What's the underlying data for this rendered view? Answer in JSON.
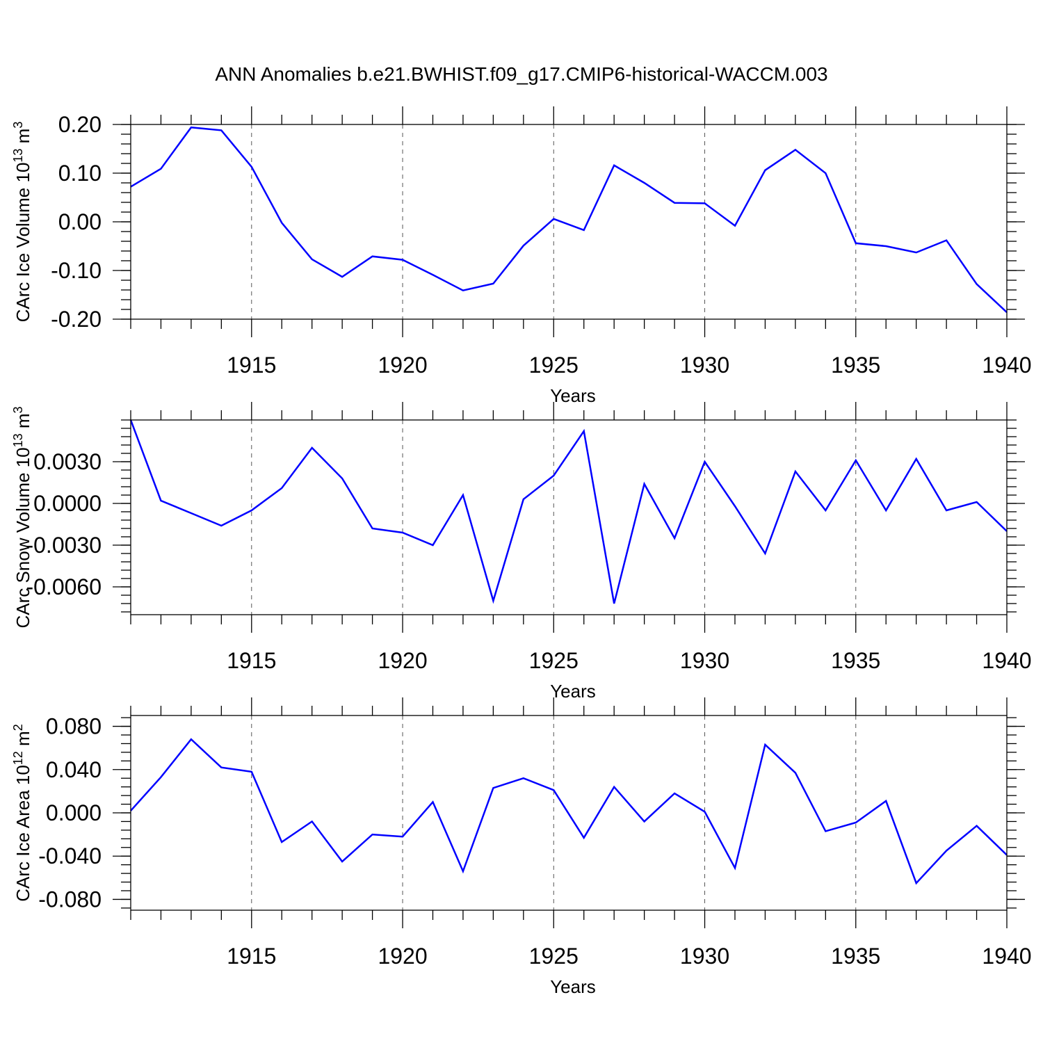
{
  "title": "ANN Anomalies b.e21.BWHIST.f09_g17.CMIP6-historical-WACCM.003",
  "line_color": "#0000ff",
  "chart_data": [
    {
      "type": "line",
      "ylabel_main": "CArc Ice Volume 10",
      "ylabel_exp": "13",
      "ylabel_unit": " m",
      "ylabel_unit_exp": "3",
      "xlabel": "Years",
      "xlim": [
        1911,
        1940
      ],
      "ylim": [
        -0.2,
        0.2
      ],
      "xticks": [
        1915,
        1920,
        1925,
        1930,
        1935,
        1940
      ],
      "yticks": [
        -0.2,
        -0.1,
        0.0,
        0.1,
        0.2
      ],
      "ytick_labels": [
        "-0.20",
        "-0.10",
        "0.00",
        "0.10",
        "0.20"
      ],
      "grid_x": true,
      "x": [
        1911,
        1912,
        1913,
        1914,
        1915,
        1916,
        1917,
        1918,
        1919,
        1920,
        1921,
        1922,
        1923,
        1924,
        1925,
        1926,
        1927,
        1928,
        1929,
        1930,
        1931,
        1932,
        1933,
        1934,
        1935,
        1936,
        1937,
        1938,
        1939,
        1940
      ],
      "values": [
        0.072,
        0.109,
        0.194,
        0.188,
        0.113,
        -0.002,
        -0.077,
        -0.113,
        -0.071,
        -0.078,
        -0.109,
        -0.141,
        -0.127,
        -0.049,
        0.006,
        -0.017,
        0.116,
        0.08,
        0.039,
        0.038,
        -0.008,
        0.106,
        0.148,
        0.1,
        -0.044,
        -0.05,
        -0.063,
        -0.038,
        -0.128,
        -0.186
      ]
    },
    {
      "type": "line",
      "ylabel_main": "CArc Snow Volume 10",
      "ylabel_exp": "13",
      "ylabel_unit": " m",
      "ylabel_unit_exp": "3",
      "xlabel": "Years",
      "xlim": [
        1911,
        1940
      ],
      "ylim": [
        -0.008,
        0.006
      ],
      "xticks": [
        1915,
        1920,
        1925,
        1930,
        1935,
        1940
      ],
      "yticks": [
        -0.006,
        -0.003,
        0.0,
        0.003
      ],
      "ytick_labels": [
        "-0.0060",
        "-0.0030",
        "0.0000",
        "0.0030"
      ],
      "grid_x": true,
      "x": [
        1911,
        1912,
        1913,
        1914,
        1915,
        1916,
        1917,
        1918,
        1919,
        1920,
        1921,
        1922,
        1923,
        1924,
        1925,
        1926,
        1927,
        1928,
        1929,
        1930,
        1931,
        1932,
        1933,
        1934,
        1935,
        1936,
        1937,
        1938,
        1939,
        1940
      ],
      "values": [
        0.006,
        0.0002,
        -0.0007,
        -0.0016,
        -0.0005,
        0.0011,
        0.004,
        0.0018,
        -0.0018,
        -0.0021,
        -0.003,
        0.0006,
        -0.007,
        0.0003,
        0.002,
        0.0052,
        -0.0072,
        0.0014,
        -0.0025,
        0.003,
        -0.0002,
        -0.0036,
        0.0023,
        -0.0005,
        0.0031,
        -0.0005,
        0.0032,
        -0.0005,
        0.0001,
        -0.002
      ]
    },
    {
      "type": "line",
      "ylabel_main": "CArc Ice Area 10",
      "ylabel_exp": "12",
      "ylabel_unit": " m",
      "ylabel_unit_exp": "2",
      "xlabel": "Years",
      "xlim": [
        1911,
        1940
      ],
      "ylim": [
        -0.09,
        0.09
      ],
      "xticks": [
        1915,
        1920,
        1925,
        1930,
        1935,
        1940
      ],
      "yticks": [
        -0.08,
        -0.04,
        0.0,
        0.04,
        0.08
      ],
      "ytick_labels": [
        "-0.080",
        "-0.040",
        "0.000",
        "0.040",
        "0.080"
      ],
      "grid_x": true,
      "x": [
        1911,
        1912,
        1913,
        1914,
        1915,
        1916,
        1917,
        1918,
        1919,
        1920,
        1921,
        1922,
        1923,
        1924,
        1925,
        1926,
        1927,
        1928,
        1929,
        1930,
        1931,
        1932,
        1933,
        1934,
        1935,
        1936,
        1937,
        1938,
        1939,
        1940
      ],
      "values": [
        0.002,
        0.033,
        0.068,
        0.042,
        0.038,
        -0.027,
        -0.008,
        -0.045,
        -0.02,
        -0.022,
        0.01,
        -0.054,
        0.023,
        0.032,
        0.021,
        -0.023,
        0.024,
        -0.008,
        0.018,
        0.001,
        -0.051,
        0.063,
        0.037,
        -0.017,
        -0.009,
        0.011,
        -0.065,
        -0.035,
        -0.012,
        -0.039
      ]
    }
  ]
}
